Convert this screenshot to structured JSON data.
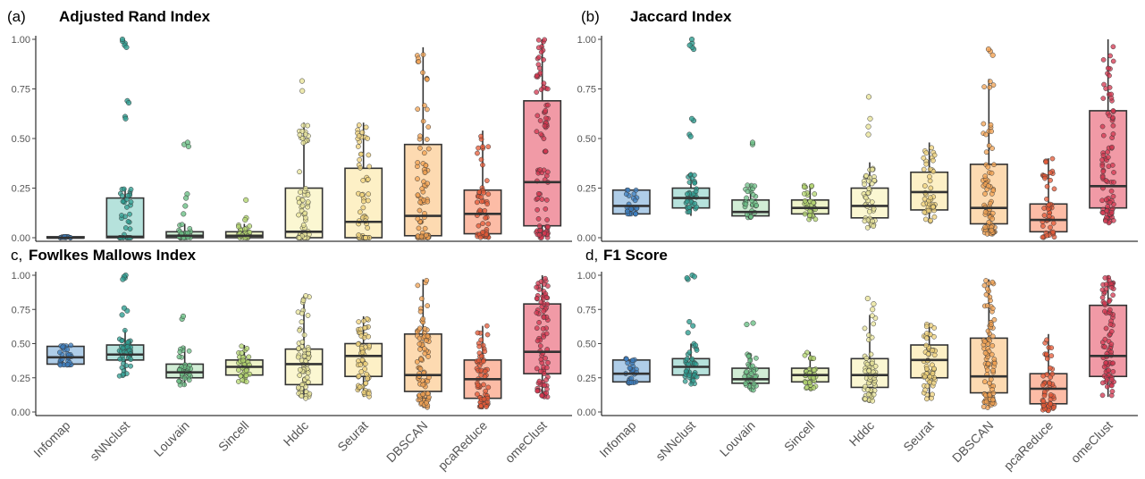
{
  "chart_data": [
    {
      "panel": "a",
      "tag": "(a)",
      "title": "Adjusted Rand Index",
      "type": "box",
      "ylim": [
        0,
        1.0
      ],
      "yticks": [
        "0.00",
        "0.25",
        "0.50",
        "0.75",
        "1.00"
      ],
      "categories": [
        "Infomap",
        "sNNclust",
        "Louvain",
        "Sincell",
        "Hddc",
        "Seurat",
        "DBSCAN",
        "pcaReduce",
        "omeClust"
      ],
      "boxes": [
        {
          "q1": 0.0,
          "median": 0.0,
          "q3": 0.005,
          "whisker_low": 0.0,
          "whisker_high": 0.005
        },
        {
          "q1": 0.0,
          "median": 0.005,
          "q3": 0.2,
          "whisker_low": 0.0,
          "whisker_high": 0.25
        },
        {
          "q1": 0.0,
          "median": 0.01,
          "q3": 0.03,
          "whisker_low": 0.0,
          "whisker_high": 0.07
        },
        {
          "q1": 0.0,
          "median": 0.01,
          "q3": 0.03,
          "whisker_low": 0.0,
          "whisker_high": 0.07
        },
        {
          "q1": 0.0,
          "median": 0.03,
          "q3": 0.25,
          "whisker_low": 0.0,
          "whisker_high": 0.58
        },
        {
          "q1": 0.0,
          "median": 0.08,
          "q3": 0.35,
          "whisker_low": 0.0,
          "whisker_high": 0.58
        },
        {
          "q1": 0.01,
          "median": 0.11,
          "q3": 0.47,
          "whisker_low": 0.0,
          "whisker_high": 0.96
        },
        {
          "q1": 0.02,
          "median": 0.12,
          "q3": 0.24,
          "whisker_low": 0.0,
          "whisker_high": 0.54
        },
        {
          "q1": 0.06,
          "median": 0.28,
          "q3": 0.69,
          "whisker_low": 0.0,
          "whisker_high": 1.0
        }
      ],
      "outliers": [
        [],
        [
          0.61,
          0.6,
          0.69,
          0.68,
          0.98,
          0.99,
          0.97,
          1.0,
          0.96
        ],
        [
          0.47,
          0.48,
          0.46,
          0.22,
          0.2,
          0.16,
          0.12
        ],
        [
          0.19,
          0.1,
          0.09
        ],
        [
          0.79,
          0.74
        ],
        [],
        [],
        [],
        []
      ]
    },
    {
      "panel": "b",
      "tag": "(b)",
      "title": "Jaccard Index",
      "type": "box",
      "ylim": [
        0,
        1.0
      ],
      "yticks": [
        "0.00",
        "0.25",
        "0.50",
        "0.75",
        "1.00"
      ],
      "categories": [
        "Infomap",
        "sNNclust",
        "Louvain",
        "Sincell",
        "Hddc",
        "Seurat",
        "DBSCAN",
        "pcaReduce",
        "omeClust"
      ],
      "boxes": [
        {
          "q1": 0.12,
          "median": 0.16,
          "q3": 0.24,
          "whisker_low": 0.12,
          "whisker_high": 0.24
        },
        {
          "q1": 0.15,
          "median": 0.2,
          "q3": 0.25,
          "whisker_low": 0.11,
          "whisker_high": 0.33
        },
        {
          "q1": 0.11,
          "median": 0.13,
          "q3": 0.19,
          "whisker_low": 0.1,
          "whisker_high": 0.27
        },
        {
          "q1": 0.12,
          "median": 0.15,
          "q3": 0.19,
          "whisker_low": 0.09,
          "whisker_high": 0.27
        },
        {
          "q1": 0.1,
          "median": 0.16,
          "q3": 0.25,
          "whisker_low": 0.05,
          "whisker_high": 0.38
        },
        {
          "q1": 0.14,
          "median": 0.23,
          "q3": 0.33,
          "whisker_low": 0.08,
          "whisker_high": 0.48
        },
        {
          "q1": 0.07,
          "median": 0.15,
          "q3": 0.37,
          "whisker_low": 0.01,
          "whisker_high": 0.8
        },
        {
          "q1": 0.03,
          "median": 0.09,
          "q3": 0.17,
          "whisker_low": 0.0,
          "whisker_high": 0.4
        },
        {
          "q1": 0.15,
          "median": 0.26,
          "q3": 0.64,
          "whisker_low": 0.07,
          "whisker_high": 1.0
        }
      ],
      "outliers": [
        [],
        [
          0.52,
          0.51,
          0.59,
          0.6,
          0.95,
          0.96,
          0.98,
          1.0,
          0.97
        ],
        [
          0.47,
          0.48
        ],
        [],
        [
          0.71,
          0.6,
          0.56,
          0.52
        ],
        [],
        [
          0.94,
          0.95,
          0.92
        ],
        [],
        []
      ]
    },
    {
      "panel": "c",
      "tag": "c,",
      "title": "Fowlkes Mallows Index",
      "type": "box",
      "ylim": [
        0,
        1.0
      ],
      "yticks": [
        "0.00",
        "0.25",
        "0.50",
        "0.75",
        "1.00"
      ],
      "categories": [
        "Infomap",
        "sNNclust",
        "Louvain",
        "Sincell",
        "Hddc",
        "Seurat",
        "DBSCAN",
        "pcaReduce",
        "omeClust"
      ],
      "boxes": [
        {
          "q1": 0.35,
          "median": 0.4,
          "q3": 0.48,
          "whisker_low": 0.34,
          "whisker_high": 0.49
        },
        {
          "q1": 0.38,
          "median": 0.42,
          "q3": 0.49,
          "whisker_low": 0.26,
          "whisker_high": 0.6
        },
        {
          "q1": 0.25,
          "median": 0.29,
          "q3": 0.35,
          "whisker_low": 0.19,
          "whisker_high": 0.48
        },
        {
          "q1": 0.27,
          "median": 0.33,
          "q3": 0.38,
          "whisker_low": 0.22,
          "whisker_high": 0.49
        },
        {
          "q1": 0.2,
          "median": 0.35,
          "q3": 0.46,
          "whisker_low": 0.1,
          "whisker_high": 0.85
        },
        {
          "q1": 0.26,
          "median": 0.41,
          "q3": 0.5,
          "whisker_low": 0.11,
          "whisker_high": 0.7
        },
        {
          "q1": 0.15,
          "median": 0.27,
          "q3": 0.57,
          "whisker_low": 0.03,
          "whisker_high": 0.97
        },
        {
          "q1": 0.1,
          "median": 0.24,
          "q3": 0.38,
          "whisker_low": 0.02,
          "whisker_high": 0.63
        },
        {
          "q1": 0.28,
          "median": 0.44,
          "q3": 0.79,
          "whisker_low": 0.11,
          "whisker_high": 1.0
        }
      ],
      "outliers": [
        [],
        [
          0.74,
          0.76,
          0.71,
          0.98,
          1.0,
          0.99,
          0.97
        ],
        [
          0.68,
          0.7
        ],
        [],
        [],
        [],
        [],
        [],
        []
      ]
    },
    {
      "panel": "d",
      "tag": "d,",
      "title": "F1 Score",
      "type": "box",
      "ylim": [
        0,
        1.0
      ],
      "yticks": [
        "0.00",
        "0.25",
        "0.50",
        "0.75",
        "1.00"
      ],
      "categories": [
        "Infomap",
        "sNNclust",
        "Louvain",
        "Sincell",
        "Hddc",
        "Seurat",
        "DBSCAN",
        "pcaReduce",
        "omeClust"
      ],
      "boxes": [
        {
          "q1": 0.22,
          "median": 0.28,
          "q3": 0.38,
          "whisker_low": 0.21,
          "whisker_high": 0.39
        },
        {
          "q1": 0.27,
          "median": 0.33,
          "q3": 0.39,
          "whisker_low": 0.2,
          "whisker_high": 0.5
        },
        {
          "q1": 0.21,
          "median": 0.24,
          "q3": 0.32,
          "whisker_low": 0.16,
          "whisker_high": 0.43
        },
        {
          "q1": 0.22,
          "median": 0.27,
          "q3": 0.32,
          "whisker_low": 0.17,
          "whisker_high": 0.44
        },
        {
          "q1": 0.18,
          "median": 0.27,
          "q3": 0.39,
          "whisker_low": 0.08,
          "whisker_high": 0.71
        },
        {
          "q1": 0.25,
          "median": 0.38,
          "q3": 0.49,
          "whisker_low": 0.09,
          "whisker_high": 0.65
        },
        {
          "q1": 0.14,
          "median": 0.26,
          "q3": 0.54,
          "whisker_low": 0.03,
          "whisker_high": 0.97
        },
        {
          "q1": 0.06,
          "median": 0.17,
          "q3": 0.28,
          "whisker_low": 0.01,
          "whisker_high": 0.57
        },
        {
          "q1": 0.26,
          "median": 0.41,
          "q3": 0.78,
          "whisker_low": 0.11,
          "whisker_high": 1.0
        }
      ],
      "outliers": [
        [],
        [
          0.63,
          0.66,
          0.58,
          0.97,
          1.0,
          0.99,
          0.98
        ],
        [
          0.64,
          0.65
        ],
        [],
        [
          0.83,
          0.79,
          0.75
        ],
        [],
        [],
        [],
        []
      ]
    }
  ],
  "palette": {
    "fills": [
      "#a6c8e6",
      "#aedfd8",
      "#ccebd0",
      "#edf3c4",
      "#fbf6cd",
      "#fdeec0",
      "#fdd6a8",
      "#fcb59c",
      "#ef8f9c"
    ],
    "points": [
      "#3d7fc0",
      "#2f9e91",
      "#6cbf86",
      "#b3d66f",
      "#e8e49a",
      "#efd27a",
      "#f2a152",
      "#e65a37",
      "#d3354f"
    ],
    "box_stroke": "#333333",
    "axis": "#000000"
  }
}
